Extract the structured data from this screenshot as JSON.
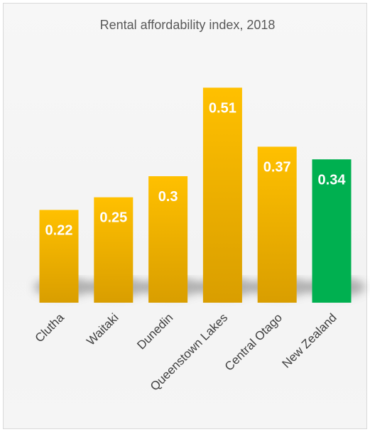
{
  "chart_data": {
    "type": "bar",
    "title": "Rental affordability index, 2018",
    "xlabel": "",
    "ylabel": "",
    "ylim": [
      0,
      0.6
    ],
    "grid": false,
    "legend": "none",
    "categories": [
      "Clutha",
      "Waitaki",
      "Dunedin",
      "Queenstown Lakes",
      "Central Otago",
      "New Zealand"
    ],
    "values": [
      0.22,
      0.25,
      0.3,
      0.51,
      0.37,
      0.34
    ],
    "data_labels": [
      "0.22",
      "0.25",
      "0.3",
      "0.51",
      "0.37",
      "0.34"
    ],
    "highlight_category": "New Zealand",
    "colors": {
      "bar": "#ffc000",
      "bar_dark": "#d99e00",
      "highlight": "#00b050",
      "label_text": "#ffffff",
      "title_text": "#595959",
      "category_text": "#404040"
    }
  }
}
